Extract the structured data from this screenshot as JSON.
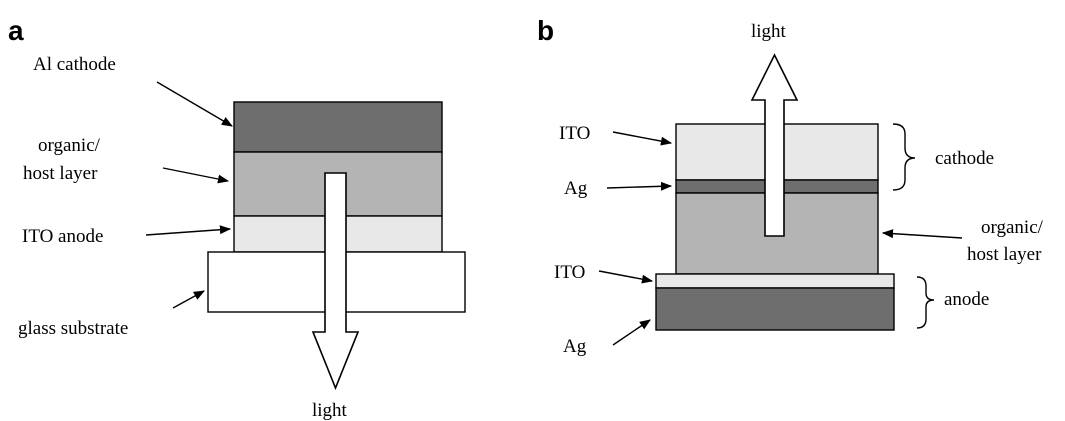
{
  "panel_a": {
    "letter": "a",
    "labels": {
      "cathode": "Al cathode",
      "organic_line1": "organic/",
      "organic_line2": "host layer",
      "anode": "ITO anode",
      "substrate": "glass substrate",
      "light": "light"
    },
    "layer_colors": {
      "cathode": "#6e6e6e",
      "organic": "#b4b4b4",
      "ito": "#e8e8e8",
      "substrate": "#ffffff"
    }
  },
  "panel_b": {
    "letter": "b",
    "labels": {
      "light": "light",
      "ito_top": "ITO",
      "ag_top": "Ag",
      "cathode": "cathode",
      "organic_line1": "organic/",
      "organic_line2": "host layer",
      "ito_bottom": "ITO",
      "anode": "anode",
      "ag_bottom": "Ag"
    },
    "layer_colors": {
      "ito_top": "#e8e8e8",
      "ag_top": "#6e6e6e",
      "organic": "#b4b4b4",
      "ito_bottom": "#e8e8e8",
      "ag_bottom": "#6e6e6e"
    }
  }
}
